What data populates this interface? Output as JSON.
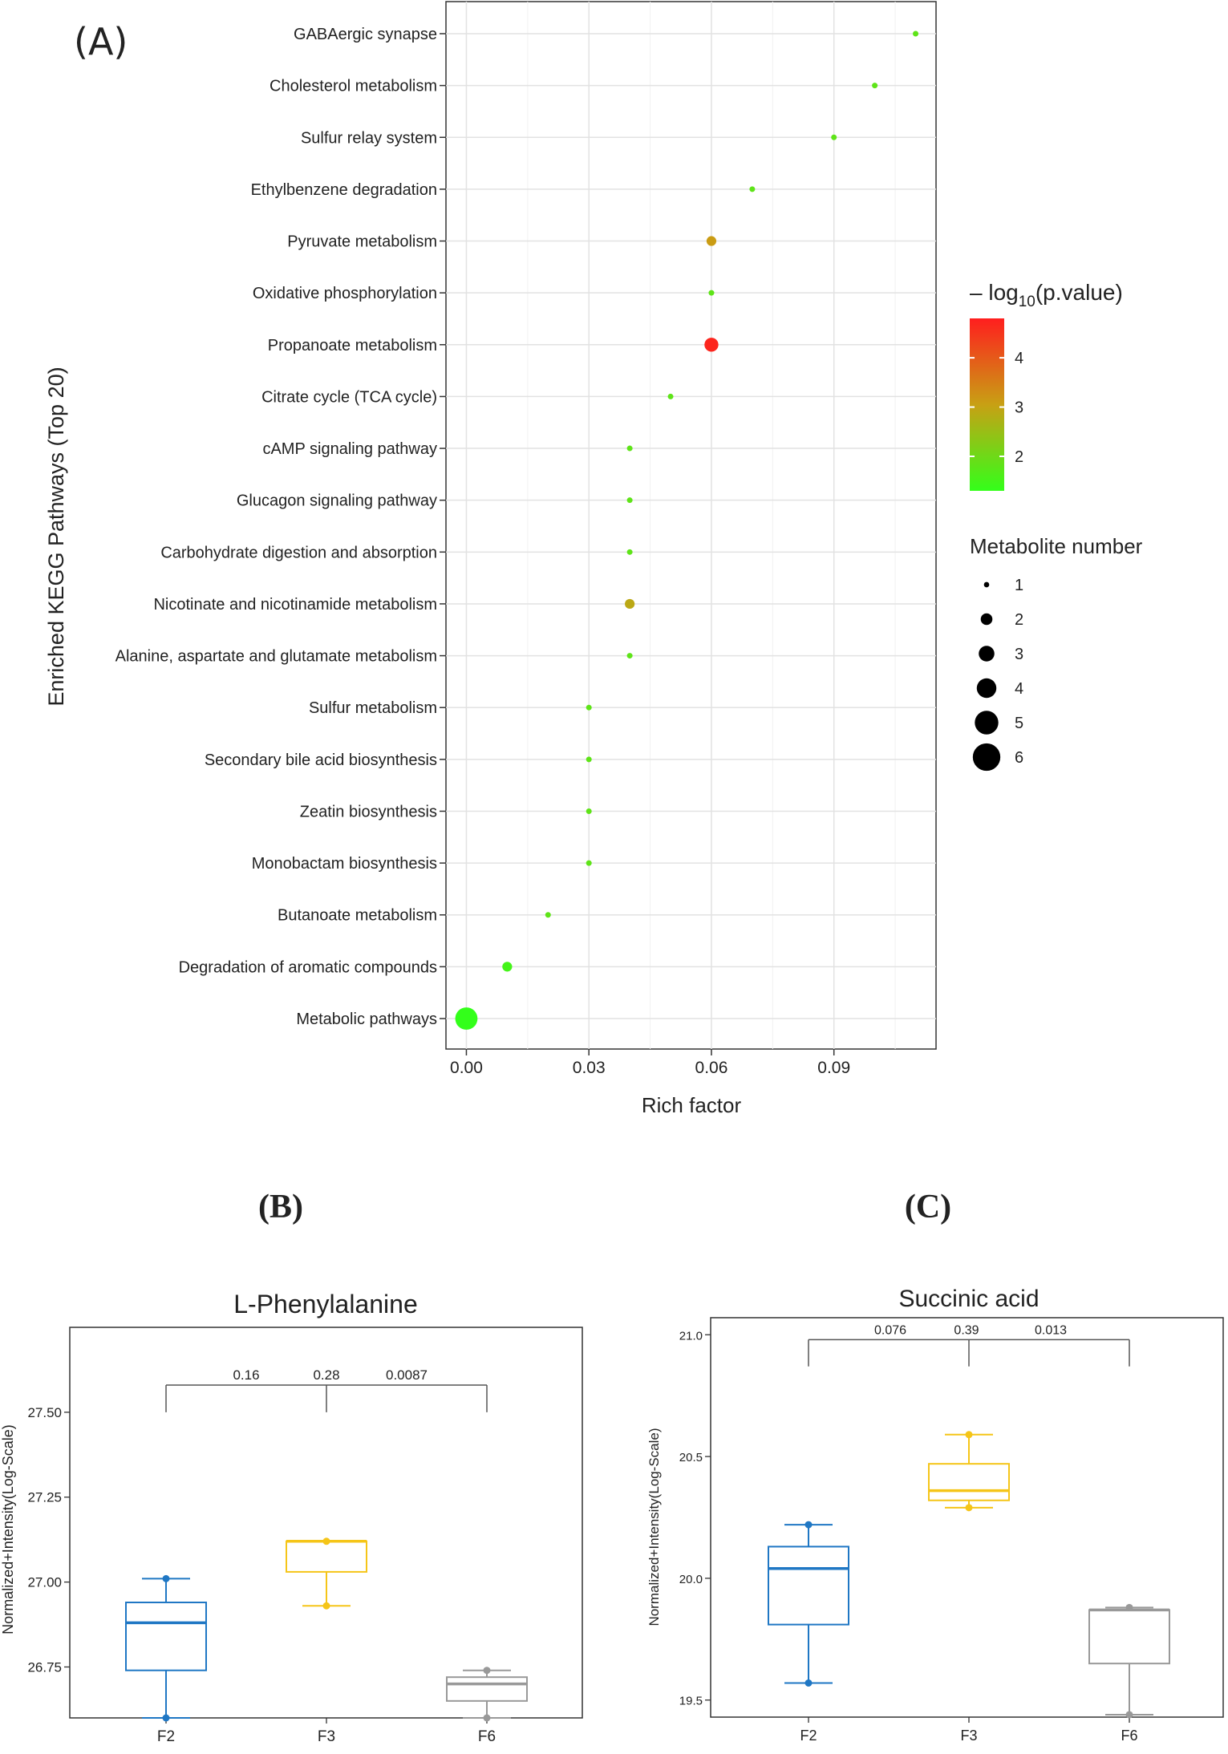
{
  "figure": {
    "panel_a_label": "(A)",
    "panel_b_label": "(B)",
    "panel_c_label": "(C)"
  },
  "chart_data": [
    {
      "id": "A",
      "type": "scatter",
      "subtype": "bubble",
      "title": "",
      "xlabel": "Rich factor",
      "ylabel": "Enriched KEGG Pathways (Top 20)",
      "xlim": [
        -0.005,
        0.115
      ],
      "xticks": [
        0.0,
        0.03,
        0.06,
        0.09
      ],
      "xtick_labels": [
        "0.00",
        "0.03",
        "0.06",
        "0.09"
      ],
      "grid": true,
      "categories": [
        "GABAergic synapse",
        "Cholesterol metabolism",
        "Sulfur relay system",
        "Ethylbenzene degradation",
        "Pyruvate metabolism",
        "Oxidative phosphorylation",
        "Propanoate metabolism",
        "Citrate cycle (TCA cycle)",
        "cAMP signaling pathway",
        "Glucagon signaling pathway",
        "Carbohydrate digestion and absorption",
        "Nicotinate and nicotinamide metabolism",
        "Alanine, aspartate and glutamate metabolism",
        "Sulfur metabolism",
        "Secondary bile acid biosynthesis",
        "Zeatin biosynthesis",
        "Monobactam biosynthesis",
        "Butanoate metabolism",
        "Degradation of aromatic compounds",
        "Metabolic pathways"
      ],
      "rich_factor": [
        0.11,
        0.1,
        0.09,
        0.07,
        0.06,
        0.06,
        0.06,
        0.05,
        0.04,
        0.04,
        0.04,
        0.04,
        0.04,
        0.03,
        0.03,
        0.03,
        0.03,
        0.02,
        0.01,
        0.0
      ],
      "neg_log10_p": [
        1.8,
        1.8,
        1.8,
        1.8,
        3.1,
        1.8,
        4.7,
        1.8,
        1.8,
        1.8,
        1.8,
        2.9,
        1.8,
        1.8,
        1.8,
        1.8,
        1.8,
        1.8,
        1.5,
        1.3
      ],
      "metabolite_number": [
        1,
        1,
        1,
        1,
        2,
        1,
        3,
        1,
        1,
        1,
        1,
        2,
        1,
        1,
        1,
        1,
        1,
        1,
        2,
        5
      ],
      "color_legend": {
        "title_prefix": "– log",
        "title_sub": "10",
        "title_suffix": "(p.value)",
        "range": [
          1.3,
          4.8
        ],
        "ticks": [
          "4",
          "3",
          "2"
        ],
        "tick_values": [
          4,
          3,
          2
        ],
        "colors": [
          "#ff1e1e",
          "#c8a014",
          "#33ff1a"
        ]
      },
      "size_legend": {
        "title": "Metabolite number",
        "labels": [
          "1",
          "2",
          "3",
          "4",
          "5",
          "6"
        ],
        "values": [
          1,
          2,
          3,
          4,
          5,
          6
        ]
      }
    },
    {
      "id": "B",
      "type": "box",
      "title": "L-Phenylalanine",
      "xlabel": "",
      "ylabel": "Normalized+Intensity(Log-Scale)",
      "categories": [
        "F2",
        "F3",
        "F6"
      ],
      "ylim": [
        26.6,
        27.75
      ],
      "yticks": [
        26.75,
        27.0,
        27.25,
        27.5
      ],
      "ytick_labels": [
        "26.75",
        "27.00",
        "27.25",
        "27.50"
      ],
      "colors": [
        "#1f77c4",
        "#f5c518",
        "#999999"
      ],
      "boxes": [
        {
          "min": 26.6,
          "q1": 26.74,
          "median": 26.88,
          "q3": 26.94,
          "max": 27.01,
          "points": [
            27.01,
            26.6
          ]
        },
        {
          "min": 26.93,
          "q1": 27.03,
          "median": 27.12,
          "q3": 27.12,
          "max": 27.12,
          "points": [
            27.12,
            26.93
          ]
        },
        {
          "min": 26.6,
          "q1": 26.65,
          "median": 26.7,
          "q3": 26.72,
          "max": 26.74,
          "points": [
            26.74,
            26.6
          ]
        }
      ],
      "bracket_y": 27.58,
      "bracket_drop_y": 27.5,
      "p_values": [
        "0.16",
        "0.28",
        "0.0087"
      ]
    },
    {
      "id": "C",
      "type": "box",
      "title": "Succinic acid",
      "xlabel": "",
      "ylabel": "Normalized+Intensity(Log-Scale)",
      "categories": [
        "F2",
        "F3",
        "F6"
      ],
      "ylim": [
        19.43,
        21.07
      ],
      "yticks": [
        19.5,
        20.0,
        20.5,
        21.0
      ],
      "ytick_labels": [
        "19.5",
        "20.0",
        "20.5",
        "21.0"
      ],
      "colors": [
        "#1f77c4",
        "#f5c518",
        "#999999"
      ],
      "boxes": [
        {
          "min": 19.57,
          "q1": 19.81,
          "median": 20.04,
          "q3": 20.13,
          "max": 20.22,
          "points": [
            20.22,
            19.57
          ]
        },
        {
          "min": 20.29,
          "q1": 20.32,
          "median": 20.36,
          "q3": 20.47,
          "max": 20.59,
          "points": [
            20.59,
            20.29
          ]
        },
        {
          "min": 19.44,
          "q1": 19.65,
          "median": 19.87,
          "q3": 19.87,
          "max": 19.88,
          "points": [
            19.88,
            19.44
          ]
        }
      ],
      "bracket_y": 20.98,
      "bracket_drop_y": 20.87,
      "p_values": [
        "0.076",
        "0.39",
        "0.013"
      ]
    }
  ]
}
